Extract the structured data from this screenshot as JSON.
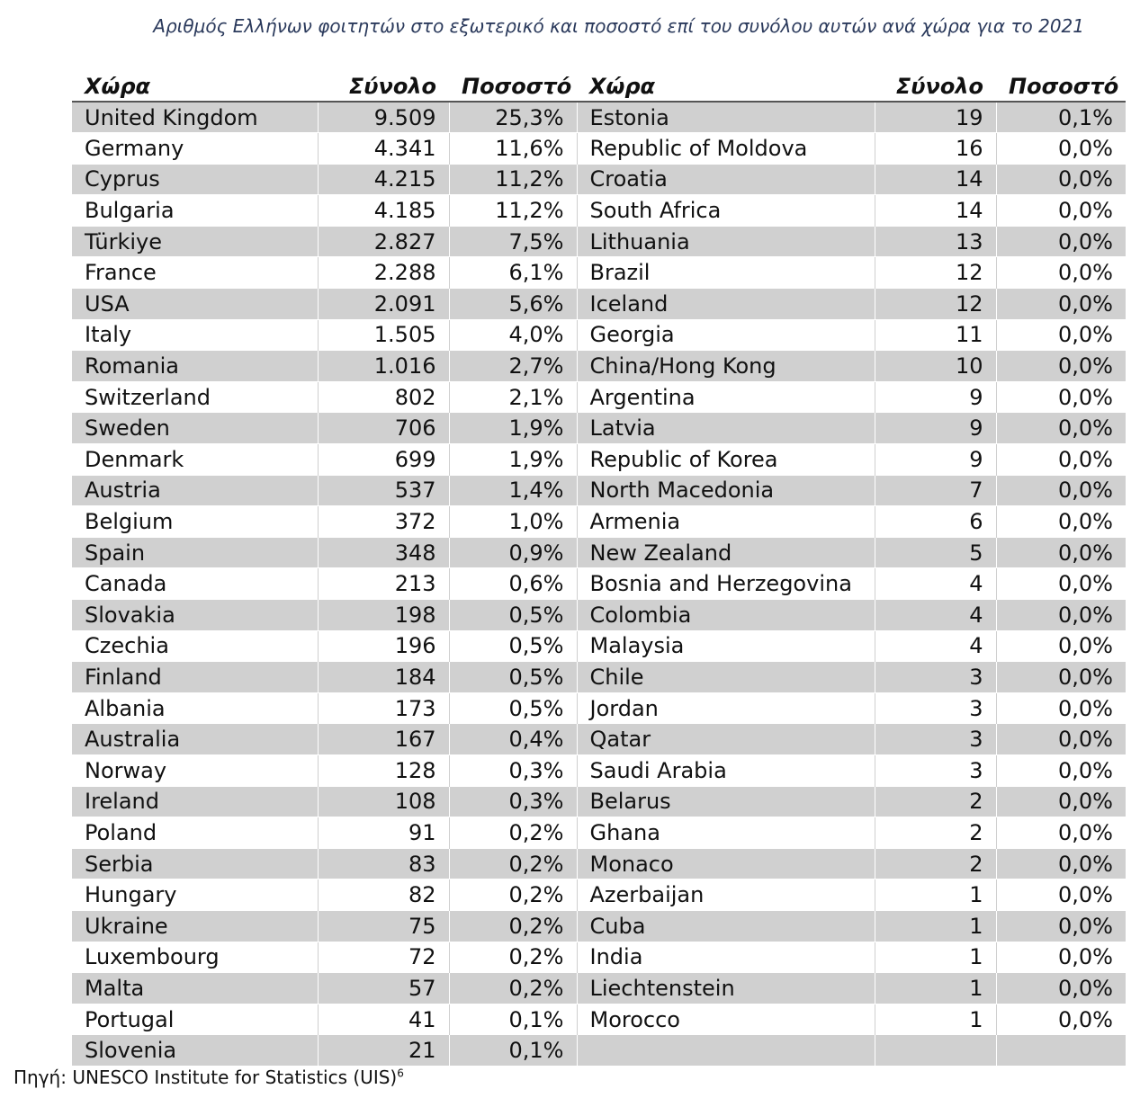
{
  "caption": "Αριθμός Ελλήνων φοιτητών στο εξωτερικό και ποσοστό επί του συνόλου αυτών ανά χώρα για το 2021",
  "headers": {
    "country": "Χώρα",
    "total": "Σύνολο",
    "percent": "Ποσοστό"
  },
  "rows": [
    {
      "c1": "United Kingdom",
      "t1": "9.509",
      "p1": "25,3%",
      "c2": "Estonia",
      "t2": "19",
      "p2": "0,1%"
    },
    {
      "c1": "Germany",
      "t1": "4.341",
      "p1": "11,6%",
      "c2": "Republic of Moldova",
      "t2": "16",
      "p2": "0,0%"
    },
    {
      "c1": "Cyprus",
      "t1": "4.215",
      "p1": "11,2%",
      "c2": "Croatia",
      "t2": "14",
      "p2": "0,0%"
    },
    {
      "c1": "Bulgaria",
      "t1": "4.185",
      "p1": "11,2%",
      "c2": "South Africa",
      "t2": "14",
      "p2": "0,0%"
    },
    {
      "c1": "Türkiye",
      "t1": "2.827",
      "p1": "7,5%",
      "c2": "Lithuania",
      "t2": "13",
      "p2": "0,0%"
    },
    {
      "c1": "France",
      "t1": "2.288",
      "p1": "6,1%",
      "c2": "Brazil",
      "t2": "12",
      "p2": "0,0%"
    },
    {
      "c1": "USA",
      "t1": "2.091",
      "p1": "5,6%",
      "c2": "Iceland",
      "t2": "12",
      "p2": "0,0%"
    },
    {
      "c1": "Italy",
      "t1": "1.505",
      "p1": "4,0%",
      "c2": "Georgia",
      "t2": "11",
      "p2": "0,0%"
    },
    {
      "c1": "Romania",
      "t1": "1.016",
      "p1": "2,7%",
      "c2": "China/Hong Kong",
      "t2": "10",
      "p2": "0,0%"
    },
    {
      "c1": "Switzerland",
      "t1": "802",
      "p1": "2,1%",
      "c2": "Argentina",
      "t2": "9",
      "p2": "0,0%"
    },
    {
      "c1": "Sweden",
      "t1": "706",
      "p1": "1,9%",
      "c2": "Latvia",
      "t2": "9",
      "p2": "0,0%"
    },
    {
      "c1": "Denmark",
      "t1": "699",
      "p1": "1,9%",
      "c2": "Republic of Korea",
      "t2": "9",
      "p2": "0,0%"
    },
    {
      "c1": "Austria",
      "t1": "537",
      "p1": "1,4%",
      "c2": "North Macedonia",
      "t2": "7",
      "p2": "0,0%"
    },
    {
      "c1": "Belgium",
      "t1": "372",
      "p1": "1,0%",
      "c2": "Armenia",
      "t2": "6",
      "p2": "0,0%"
    },
    {
      "c1": "Spain",
      "t1": "348",
      "p1": "0,9%",
      "c2": "New Zealand",
      "t2": "5",
      "p2": "0,0%"
    },
    {
      "c1": "Canada",
      "t1": "213",
      "p1": "0,6%",
      "c2": "Bosnia and Herzegovina",
      "t2": "4",
      "p2": "0,0%"
    },
    {
      "c1": "Slovakia",
      "t1": "198",
      "p1": "0,5%",
      "c2": "Colombia",
      "t2": "4",
      "p2": "0,0%"
    },
    {
      "c1": "Czechia",
      "t1": "196",
      "p1": "0,5%",
      "c2": "Malaysia",
      "t2": "4",
      "p2": "0,0%"
    },
    {
      "c1": "Finland",
      "t1": "184",
      "p1": "0,5%",
      "c2": "Chile",
      "t2": "3",
      "p2": "0,0%"
    },
    {
      "c1": "Albania",
      "t1": "173",
      "p1": "0,5%",
      "c2": "Jordan",
      "t2": "3",
      "p2": "0,0%"
    },
    {
      "c1": "Australia",
      "t1": "167",
      "p1": "0,4%",
      "c2": "Qatar",
      "t2": "3",
      "p2": "0,0%"
    },
    {
      "c1": "Norway",
      "t1": "128",
      "p1": "0,3%",
      "c2": "Saudi Arabia",
      "t2": "3",
      "p2": "0,0%"
    },
    {
      "c1": "Ireland",
      "t1": "108",
      "p1": "0,3%",
      "c2": "Belarus",
      "t2": "2",
      "p2": "0,0%"
    },
    {
      "c1": "Poland",
      "t1": "91",
      "p1": "0,2%",
      "c2": "Ghana",
      "t2": "2",
      "p2": "0,0%"
    },
    {
      "c1": "Serbia",
      "t1": "83",
      "p1": "0,2%",
      "c2": "Monaco",
      "t2": "2",
      "p2": "0,0%"
    },
    {
      "c1": "Hungary",
      "t1": "82",
      "p1": "0,2%",
      "c2": "Azerbaijan",
      "t2": "1",
      "p2": "0,0%"
    },
    {
      "c1": "Ukraine",
      "t1": "75",
      "p1": "0,2%",
      "c2": "Cuba",
      "t2": "1",
      "p2": "0,0%"
    },
    {
      "c1": "Luxembourg",
      "t1": "72",
      "p1": "0,2%",
      "c2": "India",
      "t2": "1",
      "p2": "0,0%"
    },
    {
      "c1": "Malta",
      "t1": "57",
      "p1": "0,2%",
      "c2": "Liechtenstein",
      "t2": "1",
      "p2": "0,0%"
    },
    {
      "c1": "Portugal",
      "t1": "41",
      "p1": "0,1%",
      "c2": "Morocco",
      "t2": "1",
      "p2": "0,0%"
    },
    {
      "c1": "Slovenia",
      "t1": "21",
      "p1": "0,1%",
      "c2": "",
      "t2": "",
      "p2": ""
    }
  ],
  "source": {
    "text": "Πηγή: UNESCO Institute for Statistics (UIS)",
    "footnote": "6"
  }
}
